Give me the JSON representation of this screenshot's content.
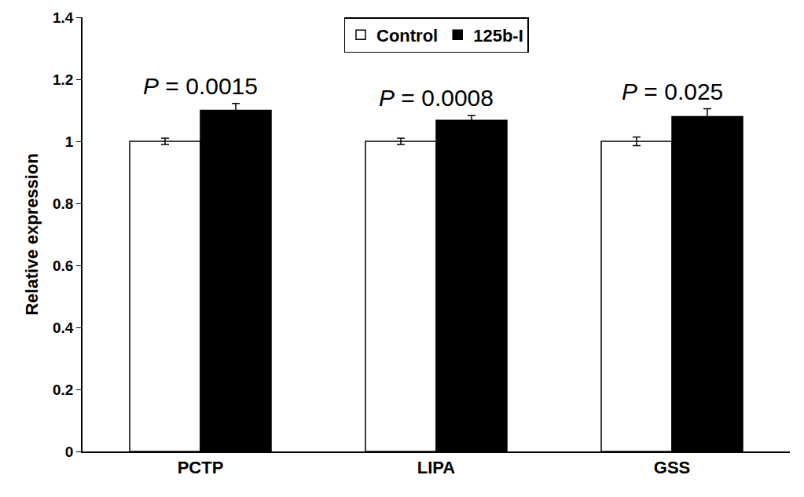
{
  "chart_data": {
    "type": "bar",
    "categories": [
      "PCTP",
      "LIPA",
      "GSS"
    ],
    "series": [
      {
        "name": "Control",
        "color": "#ffffff",
        "values": [
          1,
          1,
          1
        ],
        "errors": [
          0.01,
          0.01,
          0.014
        ]
      },
      {
        "name": "125b-I",
        "color": "#000000",
        "values": [
          1.1,
          1.068,
          1.08
        ],
        "errors": [
          0.022,
          0.015,
          0.025
        ]
      }
    ],
    "y_label": "Relative expression",
    "ylim": [
      0,
      1.4
    ],
    "yticks": [
      0,
      0.2,
      0.4,
      0.6,
      0.8,
      1,
      1.2,
      1.4
    ],
    "annotations": [
      {
        "text": "P = 0.0015",
        "category": "PCTP"
      },
      {
        "text": "P = 0.0008",
        "category": "LIPA"
      },
      {
        "text": "P = 0.025",
        "category": "GSS"
      }
    ],
    "legend": "top",
    "grid": false
  }
}
